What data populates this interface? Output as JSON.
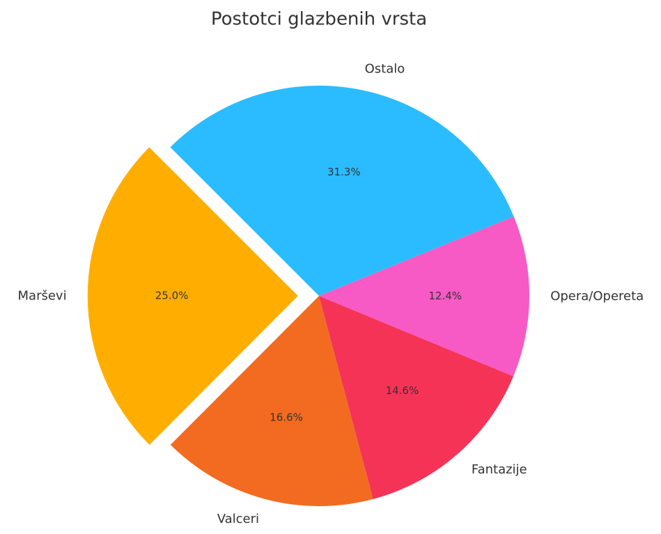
{
  "chart_data": {
    "type": "pie",
    "title": "Postotci glazbenih vrsta",
    "categories": [
      "Marševi",
      "Valceri",
      "Fantazije",
      "Opera/Opereta",
      "Ostalo"
    ],
    "values": [
      25.0,
      16.6,
      14.6,
      12.4,
      31.3
    ],
    "value_labels": [
      "25.0%",
      "16.6%",
      "14.6%",
      "12.4%",
      "31.3%"
    ],
    "colors": [
      "#FFAE00",
      "#F26B21",
      "#F53357",
      "#F75AC4",
      "#2BBCFF"
    ],
    "explode": [
      0.1,
      0,
      0,
      0,
      0
    ],
    "startangle": 135
  }
}
